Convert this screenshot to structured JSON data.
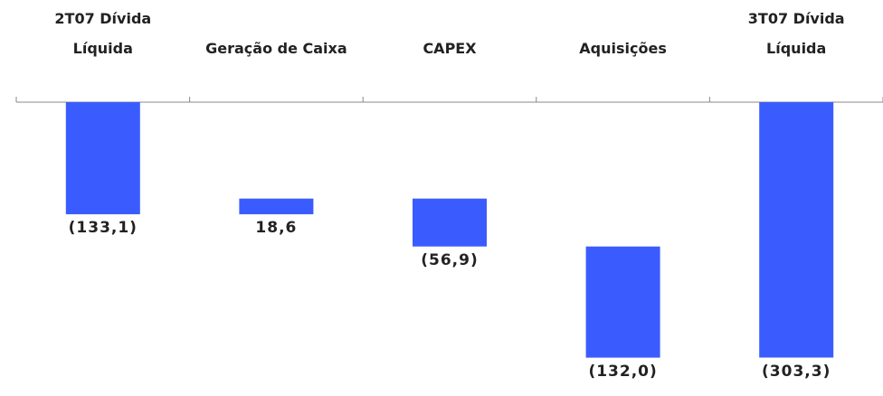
{
  "chart_data": {
    "type": "waterfall",
    "categories": [
      "2T07 Dívida Líquida",
      "Geração de Caixa",
      "CAPEX",
      "Aquisições",
      "3T07 Dívida Líquida"
    ],
    "values": [
      -133.1,
      18.6,
      -56.9,
      -132.0,
      -303.3
    ],
    "value_labels": [
      "(133,1)",
      "18,6",
      "(56,9)",
      "(132,0)",
      "(303,3)"
    ],
    "color": "#3a5cff",
    "ylim": [
      -350,
      0
    ]
  }
}
